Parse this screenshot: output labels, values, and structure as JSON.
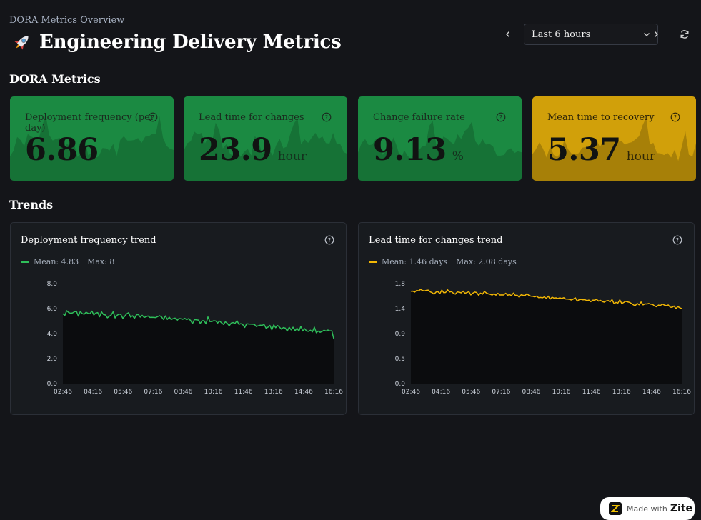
{
  "breadcrumb": "DORA Metrics Overview",
  "page_title": "Engineering Delivery Metrics",
  "time_range": {
    "value": "Last 6 hours"
  },
  "sections": {
    "dora": "DORA Metrics",
    "trends": "Trends"
  },
  "stats": [
    {
      "label": "Deployment frequency (per day)",
      "value": "6.86",
      "unit": "",
      "color": "#1b8a42"
    },
    {
      "label": "Lead time for changes",
      "value": "23.9",
      "unit": "hour",
      "color": "#1b8a42"
    },
    {
      "label": "Change failure rate",
      "value": "9.13",
      "unit": "%",
      "color": "#1b8a42"
    },
    {
      "label": "Mean time to recovery",
      "value": "5.37",
      "unit": "hour",
      "color": "#d1a00a"
    }
  ],
  "panels": [
    {
      "title": "Deployment frequency trend",
      "legend_mean": "Mean: 4.83",
      "legend_max": "Max: 8",
      "color": "#2fbf5a"
    },
    {
      "title": "Lead time for changes trend",
      "legend_mean": "Mean: 1.46 days",
      "legend_max": "Max: 2.08 days",
      "color": "#f2b705"
    }
  ],
  "badge": {
    "made_with": "Made with",
    "brand": "Zite"
  },
  "chart_data": [
    {
      "type": "line",
      "title": "Deployment frequency trend",
      "x": [
        "02:46",
        "04:16",
        "05:46",
        "07:16",
        "08:46",
        "10:16",
        "11:46",
        "13:16",
        "14:46",
        "16:16"
      ],
      "y_ticks": [
        "0.0",
        "2.0",
        "4.0",
        "6.0",
        "8.0"
      ],
      "ylim": [
        0,
        8
      ],
      "series": [
        {
          "name": "Deployment frequency",
          "start": 5.7,
          "end": 4.1,
          "noise": 0.35,
          "last": 3.6
        }
      ]
    },
    {
      "type": "line",
      "title": "Lead time for changes trend",
      "x": [
        "02:46",
        "04:16",
        "05:46",
        "07:16",
        "08:46",
        "10:16",
        "11:46",
        "13:16",
        "14:46",
        "16:16"
      ],
      "y_ticks": [
        "0.0",
        "0.5",
        "0.9",
        "1.4",
        "1.8"
      ],
      "ylim": [
        0,
        1.8
      ],
      "series": [
        {
          "name": "Lead time (days)",
          "start": 1.67,
          "end": 1.38,
          "noise": 0.05,
          "last": 1.35
        }
      ]
    }
  ]
}
